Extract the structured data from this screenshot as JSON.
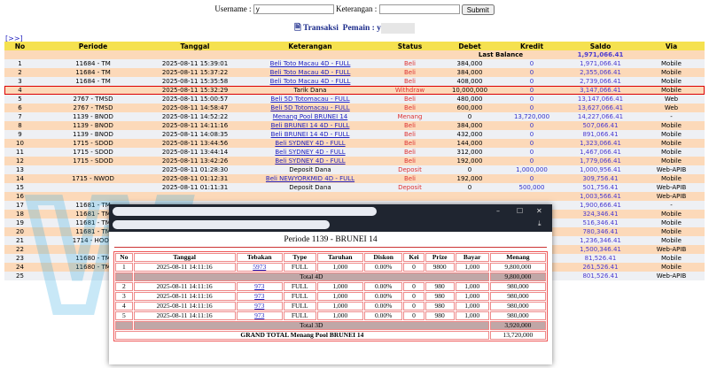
{
  "form": {
    "username_label": "Username :",
    "username_value": "y",
    "keterangan_label": "Keterangan :",
    "keterangan_value": "",
    "submit_label": "Submit"
  },
  "title": {
    "prefix": "Transaksi",
    "pemain_label": "Pemain : y"
  },
  "nav_link": "[>>]",
  "columns": [
    "No",
    "Periode",
    "Tanggal",
    "Keterangan",
    "Status",
    "Debet",
    "Kredit",
    "Saldo",
    "Via"
  ],
  "last_balance": {
    "label": "Last Balance",
    "value": "1,971,066.41"
  },
  "rows": [
    [
      "1",
      "11684 - TM",
      "2025-08-11 15:39:01",
      "Beli Toto Macau 4D - FULL",
      "Beli",
      "384,000",
      "0",
      "1,971,066.41",
      "Mobile"
    ],
    [
      "2",
      "11684 - TM",
      "2025-08-11 15:37:22",
      "Beli Toto Macau 4D - FULL",
      "Beli",
      "384,000",
      "0",
      "2,355,066.41",
      "Mobile"
    ],
    [
      "3",
      "11684 - TM",
      "2025-08-11 15:35:58",
      "Beli Toto Macau 4D - FULL",
      "Beli",
      "408,000",
      "0",
      "2,739,066.41",
      "Mobile"
    ],
    [
      "4",
      "",
      "2025-08-11 15:32:29",
      "Tarik Dana",
      "Withdraw",
      "10,000,000",
      "0",
      "3,147,066.41",
      "Mobile"
    ],
    [
      "5",
      "2767 - TMSD",
      "2025-08-11 15:00:57",
      "Beli 5D Totomacau - FULL",
      "Beli",
      "480,000",
      "0",
      "13,147,066.41",
      "Web"
    ],
    [
      "6",
      "2767 - TMSD",
      "2025-08-11 14:58:47",
      "Beli 5D Totomacau - FULL",
      "Beli",
      "600,000",
      "0",
      "13,627,066.41",
      "Web"
    ],
    [
      "7",
      "1139 - BNOD",
      "2025-08-11 14:52:22",
      "Menang Pool BRUNEI 14",
      "Menang",
      "0",
      "13,720,000",
      "14,227,066.41",
      "-"
    ],
    [
      "8",
      "1139 - BNOD",
      "2025-08-11 14:11:16",
      "Beli BRUNEI 14 4D - FULL",
      "Beli",
      "384,000",
      "0",
      "507,066.41",
      "Mobile"
    ],
    [
      "9",
      "1139 - BNOD",
      "2025-08-11 14:08:35",
      "Beli BRUNEI 14 4D - FULL",
      "Beli",
      "432,000",
      "0",
      "891,066.41",
      "Mobile"
    ],
    [
      "10",
      "1715 - SDOD",
      "2025-08-11 13:44:56",
      "Beli SYDNEY 4D - FULL",
      "Beli",
      "144,000",
      "0",
      "1,323,066.41",
      "Mobile"
    ],
    [
      "11",
      "1715 - SDOD",
      "2025-08-11 13:44:14",
      "Beli SYDNEY 4D - FULL",
      "Beli",
      "312,000",
      "0",
      "1,467,066.41",
      "Mobile"
    ],
    [
      "12",
      "1715 - SDOD",
      "2025-08-11 13:42:26",
      "Beli SYDNEY 4D - FULL",
      "Beli",
      "192,000",
      "0",
      "1,779,066.41",
      "Mobile"
    ],
    [
      "13",
      "",
      "2025-08-11 01:28:30",
      "Deposit Dana",
      "Deposit",
      "0",
      "1,000,000",
      "1,000,956.41",
      "Web-APIB"
    ],
    [
      "14",
      "1715 - NWOD",
      "2025-08-11 01:12:31",
      "Beli NEWYORKMID 4D - FULL",
      "Beli",
      "192,000",
      "0",
      "309,756.41",
      "Mobile"
    ],
    [
      "15",
      "",
      "2025-08-11 01:11:31",
      "Deposit Dana",
      "Deposit",
      "0",
      "500,000",
      "501,756.41",
      "Web-APIB"
    ],
    [
      "16",
      "",
      "",
      "",
      "",
      "",
      "",
      "1,003,566.41",
      "Web-APIB"
    ],
    [
      "17",
      "11681 - TM",
      "",
      "",
      "",
      "",
      "",
      "1,900,666.41",
      "-"
    ],
    [
      "18",
      "11681 - TM",
      "",
      "",
      "",
      "",
      "",
      "324,346.41",
      "Mobile"
    ],
    [
      "19",
      "11681 - TM",
      "",
      "",
      "",
      "",
      "",
      "516,346.41",
      "Mobile"
    ],
    [
      "20",
      "11681 - TM",
      "",
      "",
      "",
      "",
      "",
      "780,346.41",
      "Mobile"
    ],
    [
      "21",
      "1714 - HOOD",
      "",
      "",
      "",
      "",
      "",
      "1,236,346.41",
      "Mobile"
    ],
    [
      "22",
      "",
      "",
      "",
      "",
      "",
      "",
      "1,500,346.41",
      "Web-APIB"
    ],
    [
      "23",
      "11680 - TM",
      "",
      "",
      "",
      "",
      "",
      "81,526.41",
      "Mobile"
    ],
    [
      "24",
      "11680 - TM",
      "",
      "",
      "",
      "",
      "",
      "261,526.41",
      "Mobile"
    ],
    [
      "25",
      "",
      "",
      "",
      "",
      "",
      "",
      "801,526.41",
      "Web-APIB"
    ]
  ],
  "popup": {
    "title": "Periode 1139 - BRUNEI 14",
    "columns": [
      "No",
      "Tanggal",
      "Tebakan",
      "Type",
      "Taruhan",
      "Diskon",
      "Kei",
      "Prize",
      "Bayar",
      "Menang"
    ],
    "rows_4d": [
      [
        "1",
        "2025-08-11 14:11:16",
        "5973",
        "FULL",
        "1,000",
        "0.00%",
        "0",
        "9800",
        "1,000",
        "9,800,000"
      ]
    ],
    "total_4d": {
      "label": "Total 4D",
      "value": "9,800,000"
    },
    "rows_3d": [
      [
        "2",
        "2025-08-11 14:11:16",
        "973",
        "FULL",
        "1,000",
        "0.00%",
        "0",
        "980",
        "1,000",
        "980,000"
      ],
      [
        "3",
        "2025-08-11 14:11:16",
        "973",
        "FULL",
        "1,000",
        "0.00%",
        "0",
        "980",
        "1,000",
        "980,000"
      ],
      [
        "4",
        "2025-08-11 14:11:16",
        "973",
        "FULL",
        "1,000",
        "0.00%",
        "0",
        "980",
        "1,000",
        "980,000"
      ],
      [
        "5",
        "2025-08-11 14:11:16",
        "973",
        "FULL",
        "1,000",
        "0.00%",
        "0",
        "980",
        "1,000",
        "980,000"
      ]
    ],
    "total_3d": {
      "label": "Total 3D",
      "value": "3,920,000"
    },
    "grand_total": {
      "label": "GRAND TOTAL  Menang Pool BRUNEI 14",
      "value": "13,720,000"
    }
  },
  "colors": {
    "header": "#f5e14f",
    "row_even": "#fcd9b9",
    "row_odd": "#eef0f4",
    "highlight": "#dd0000",
    "link": "#2222c0"
  }
}
